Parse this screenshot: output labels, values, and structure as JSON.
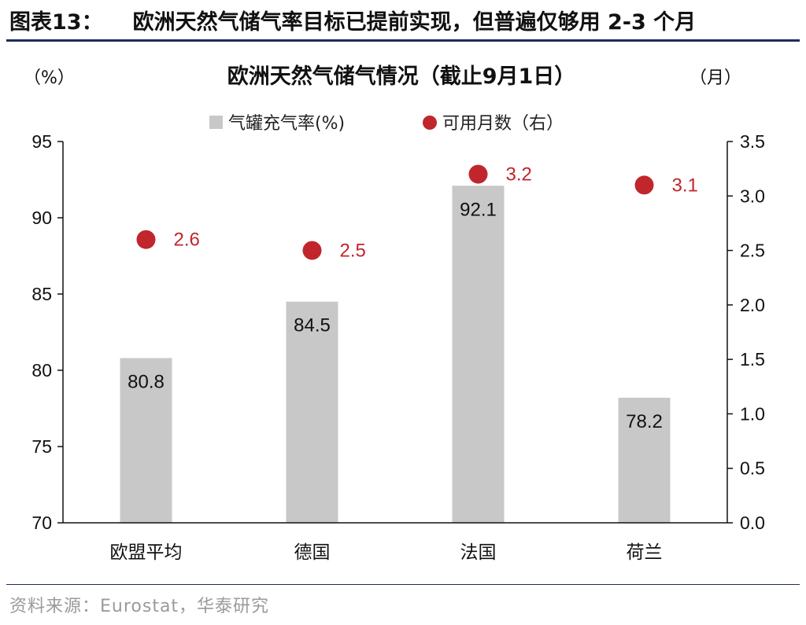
{
  "figure": {
    "number_label": "图表13：",
    "title": "欧洲天然气储气率目标已提前实现，但普遍仅够用 2-3 个月"
  },
  "source": "资料来源：Eurostat，华泰研究",
  "colors": {
    "bar": "#c8c8c8",
    "dot": "#c0262c",
    "rule": "#1f2b5c"
  },
  "chart_data": {
    "type": "bar+scatter",
    "title": "欧洲天然气储气情况（截止9月1日）",
    "y_left_unit": "（%）",
    "y_right_unit": "（月）",
    "categories": [
      "欧盟平均",
      "德国",
      "法国",
      "荷兰"
    ],
    "series": [
      {
        "name": "气罐充气率(%)",
        "type": "bar",
        "axis": "left",
        "values": [
          80.8,
          84.5,
          92.1,
          78.2
        ],
        "labels": [
          "80.8",
          "84.5",
          "92.1",
          "78.2"
        ]
      },
      {
        "name": "可用月数（右）",
        "type": "scatter",
        "axis": "right",
        "values": [
          2.6,
          2.5,
          3.2,
          3.1
        ],
        "labels": [
          "2.6",
          "2.5",
          "3.2",
          "3.1"
        ]
      }
    ],
    "y_left": {
      "min": 70,
      "max": 95,
      "ticks": [
        "70",
        "75",
        "80",
        "85",
        "90",
        "95"
      ]
    },
    "y_right": {
      "min": 0,
      "max": 3.5,
      "ticks": [
        "0.0",
        "0.5",
        "1.0",
        "1.5",
        "2.0",
        "2.5",
        "3.0",
        "3.5"
      ]
    },
    "grid": false,
    "legend_position": "top"
  }
}
